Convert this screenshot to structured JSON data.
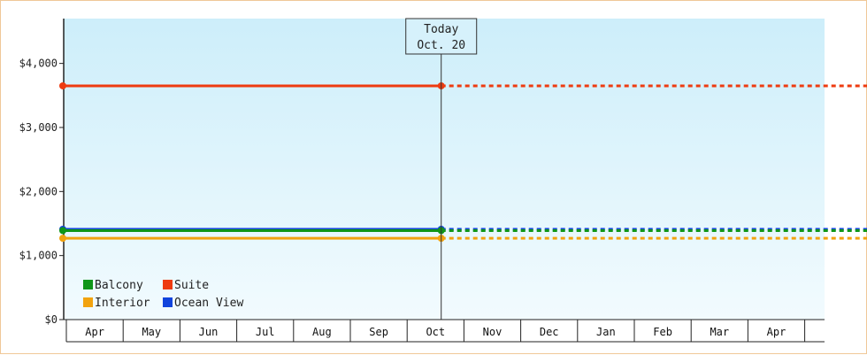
{
  "chart_data": {
    "type": "line",
    "title": "",
    "xlabel": "",
    "ylabel": "",
    "x_categories": [
      "Apr",
      "May",
      "Jun",
      "Jul",
      "Aug",
      "Sep",
      "Oct",
      "Nov",
      "Dec",
      "Jan",
      "Feb",
      "Mar",
      "Apr"
    ],
    "y_ticks": [
      "$0",
      "$1,000",
      "$2,000",
      "$3,000",
      "$4,000"
    ],
    "y_tick_values": [
      0,
      1000,
      2000,
      3000,
      4000
    ],
    "ylim": [
      0,
      4700
    ],
    "grid": false,
    "legend_position": "bottom-left",
    "today_marker": {
      "line1": "Today",
      "line2": "Oct. 20",
      "month_index": 6.6
    },
    "series": [
      {
        "name": "Balcony",
        "color": "#109618",
        "start_value": 1390,
        "today_value": 1390,
        "projection_value": 1390
      },
      {
        "name": "Suite",
        "color": "#ee3b10",
        "start_value": 3650,
        "today_value": 3650,
        "projection_value": 3650
      },
      {
        "name": "Interior",
        "color": "#f2a30f",
        "start_value": 1270,
        "today_value": 1270,
        "projection_value": 1270
      },
      {
        "name": "Ocean View",
        "color": "#1144dd",
        "start_value": 1410,
        "today_value": 1410,
        "projection_value": 1410
      }
    ],
    "legend_order": [
      "Balcony",
      "Suite",
      "Interior",
      "Ocean View"
    ]
  }
}
